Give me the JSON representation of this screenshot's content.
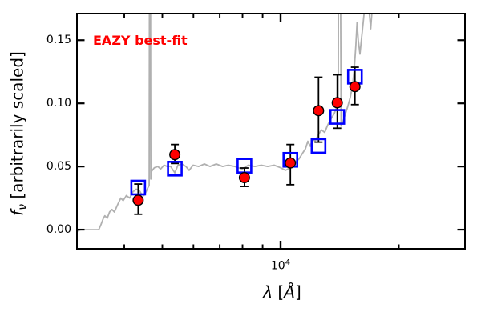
{
  "figure": {
    "annotation": "EAZY best-fit",
    "annotation_color": "#ff0000",
    "ylabel": {
      "f": "f",
      "sub": "ν",
      "rest": " [arbitrarily scaled]"
    },
    "xlabel": {
      "lambda": "λ",
      "open": " [",
      "angstrom": "Å",
      "close": "]"
    },
    "xtick_major_label": {
      "base": "10",
      "exp": "4"
    },
    "ytick_labels": [
      "0.15",
      "0.10",
      "0.05",
      "0.00"
    ]
  },
  "chart_data": {
    "type": "line+scatter",
    "title": "",
    "annotation": "EAZY best-fit",
    "xlabel": "lambda [Angstrom]",
    "ylabel": "f_nu [arbitrarily scaled]",
    "xscale": "log",
    "yscale": "linear",
    "grid": false,
    "legend": "none",
    "xlim": [
      3017,
      29610
    ],
    "ylim": [
      -0.0158,
      0.1717
    ],
    "xticks_major": [
      10000
    ],
    "xticks_minor": [
      4000,
      5000,
      6000,
      7000,
      8000,
      9000,
      20000
    ],
    "yticks_major": [
      0.0,
      0.05,
      0.1,
      0.15
    ],
    "colors": {
      "spectrum": "#b0b0b0",
      "model_marker": "#0000ff",
      "observed_marker": "#ff0000",
      "error_bar": "#000000",
      "axes": "#000000"
    },
    "series": [
      {
        "name": "eazy-model-spectrum",
        "type": "line",
        "color": "#b0b0b0",
        "points": [
          [
            3017,
            -0.0015
          ],
          [
            3100,
            0.0
          ],
          [
            3445,
            0.0
          ],
          [
            3490,
            0.004
          ],
          [
            3540,
            0.009
          ],
          [
            3570,
            0.011
          ],
          [
            3620,
            0.009
          ],
          [
            3670,
            0.014
          ],
          [
            3720,
            0.016
          ],
          [
            3775,
            0.014
          ],
          [
            3850,
            0.02
          ],
          [
            3920,
            0.025
          ],
          [
            3975,
            0.023
          ],
          [
            4050,
            0.027
          ],
          [
            4130,
            0.025
          ],
          [
            4210,
            0.03
          ],
          [
            4290,
            0.032
          ],
          [
            4370,
            0.031
          ],
          [
            4430,
            0.028
          ],
          [
            4490,
            0.027
          ],
          [
            4545,
            0.03
          ],
          [
            4590,
            0.033
          ],
          [
            4630,
            0.035
          ],
          [
            4640,
            0.26
          ],
          [
            4662,
            0.26
          ],
          [
            4672,
            0.04
          ],
          [
            4690,
            0.046
          ],
          [
            4770,
            0.049
          ],
          [
            4870,
            0.05
          ],
          [
            4950,
            0.048
          ],
          [
            5050,
            0.051
          ],
          [
            5150,
            0.05
          ],
          [
            5250,
            0.05
          ],
          [
            5380,
            0.045
          ],
          [
            5480,
            0.051
          ],
          [
            5610,
            0.052
          ],
          [
            5740,
            0.05
          ],
          [
            5850,
            0.047
          ],
          [
            5990,
            0.051
          ],
          [
            6190,
            0.05
          ],
          [
            6400,
            0.052
          ],
          [
            6610,
            0.05
          ],
          [
            6860,
            0.052
          ],
          [
            7120,
            0.05
          ],
          [
            7360,
            0.051
          ],
          [
            7650,
            0.05
          ],
          [
            7980,
            0.048
          ],
          [
            8280,
            0.051
          ],
          [
            8600,
            0.05
          ],
          [
            8930,
            0.051
          ],
          [
            9270,
            0.05
          ],
          [
            9630,
            0.051
          ],
          [
            10000,
            0.049
          ],
          [
            10290,
            0.047
          ],
          [
            10580,
            0.049
          ],
          [
            10880,
            0.053
          ],
          [
            11140,
            0.056
          ],
          [
            11350,
            0.06
          ],
          [
            11570,
            0.064
          ],
          [
            11730,
            0.07
          ],
          [
            11900,
            0.066
          ],
          [
            12070,
            0.072
          ],
          [
            12240,
            0.07
          ],
          [
            12470,
            0.075
          ],
          [
            12700,
            0.079
          ],
          [
            12950,
            0.077
          ],
          [
            13190,
            0.083
          ],
          [
            13450,
            0.088
          ],
          [
            13700,
            0.092
          ],
          [
            13890,
            0.097
          ],
          [
            14020,
            0.105
          ],
          [
            14060,
            0.28
          ],
          [
            14170,
            0.28
          ],
          [
            14260,
            0.082
          ],
          [
            14430,
            0.086
          ],
          [
            14630,
            0.092
          ],
          [
            14840,
            0.098
          ],
          [
            15050,
            0.105
          ],
          [
            15260,
            0.115
          ],
          [
            15410,
            0.128
          ],
          [
            15550,
            0.146
          ],
          [
            15660,
            0.164
          ],
          [
            15770,
            0.15
          ],
          [
            15920,
            0.139
          ],
          [
            16070,
            0.151
          ],
          [
            16220,
            0.163
          ],
          [
            16370,
            0.176
          ],
          [
            16520,
            0.19
          ],
          [
            16700,
            0.175
          ],
          [
            16840,
            0.17
          ],
          [
            16960,
            0.159
          ],
          [
            17080,
            0.172
          ],
          [
            17240,
            0.21
          ],
          [
            17300,
            0.3
          ]
        ]
      },
      {
        "name": "model-photometry",
        "type": "scatter",
        "marker": "open-square",
        "color": "#0000ff",
        "points": [
          [
            4340,
            0.0333
          ],
          [
            5380,
            0.0483
          ],
          [
            8090,
            0.0506
          ],
          [
            10590,
            0.0553
          ],
          [
            12490,
            0.0663
          ],
          [
            13940,
            0.0893
          ],
          [
            15460,
            0.1211
          ]
        ]
      },
      {
        "name": "observed-photometry",
        "type": "scatter",
        "marker": "filled-circle",
        "color": "#ff0000",
        "edge_color": "#000000",
        "points": [
          {
            "x": 4340,
            "y": 0.0233,
            "yerr_plus": 0.0128,
            "yerr_minus": 0.0111
          },
          {
            "x": 5380,
            "y": 0.0594,
            "yerr_plus": 0.008,
            "yerr_minus": 0.007
          },
          {
            "x": 8090,
            "y": 0.0412,
            "yerr_plus": 0.0076,
            "yerr_minus": 0.007
          },
          {
            "x": 10590,
            "y": 0.0528,
            "yerr_plus": 0.0146,
            "yerr_minus": 0.0172
          },
          {
            "x": 12490,
            "y": 0.0942,
            "yerr_plus": 0.0265,
            "yerr_minus": 0.0249
          },
          {
            "x": 13940,
            "y": 0.1005,
            "yerr_plus": 0.0221,
            "yerr_minus": 0.0202
          },
          {
            "x": 15460,
            "y": 0.1132,
            "yerr_plus": 0.0154,
            "yerr_minus": 0.0142
          }
        ]
      }
    ]
  }
}
